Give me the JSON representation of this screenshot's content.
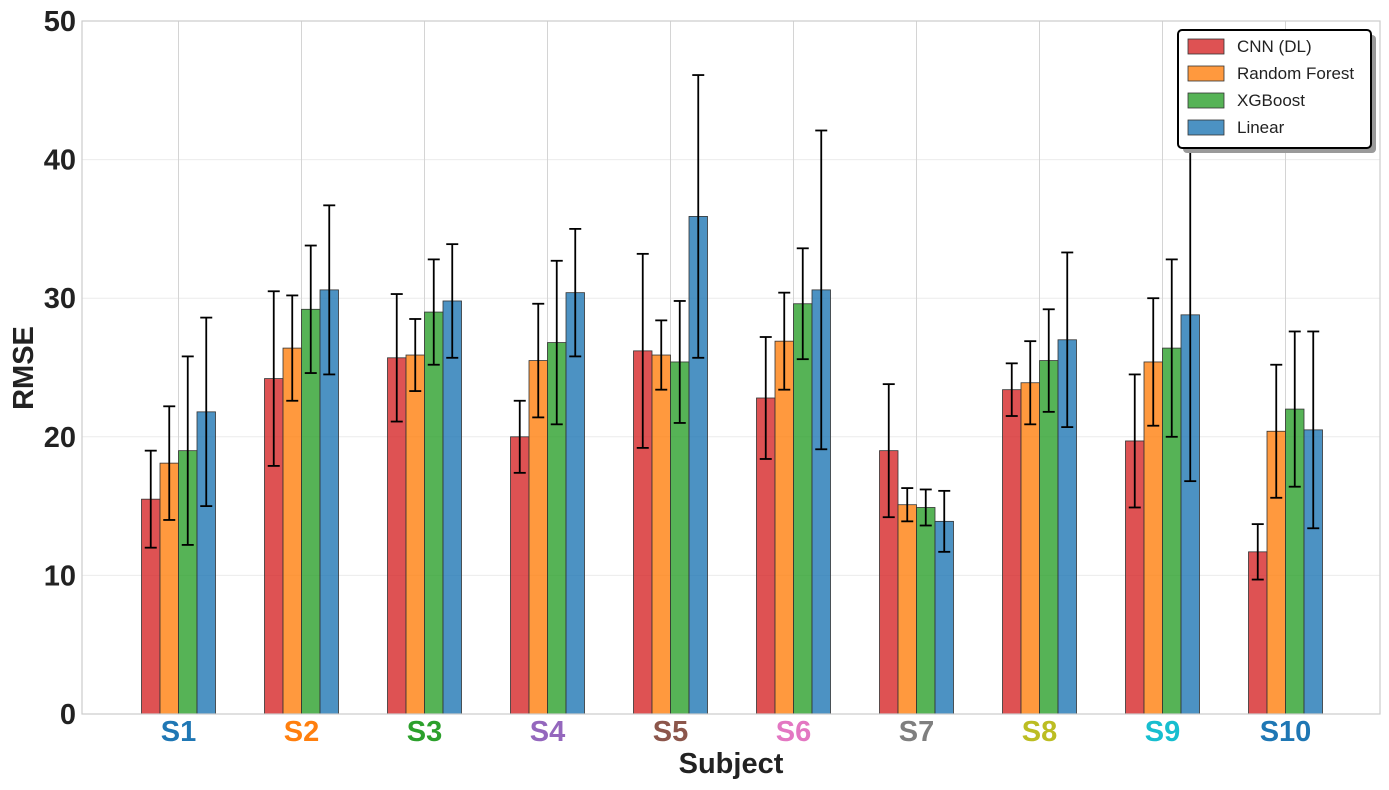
{
  "chart_data": {
    "type": "bar",
    "title": "",
    "xlabel": "Subject",
    "ylabel": "RMSE",
    "ylim": [
      0,
      50
    ],
    "yticks": [
      0,
      10,
      20,
      30,
      40,
      50
    ],
    "grid": true,
    "legend_position": "top-right",
    "categories": [
      "S1",
      "S2",
      "S3",
      "S4",
      "S5",
      "S6",
      "S7",
      "S8",
      "S9",
      "S10"
    ],
    "category_colors": [
      "#1f77b4",
      "#ff7f0e",
      "#2ca02c",
      "#9467bd",
      "#8c564b",
      "#e377c2",
      "#7f7f7f",
      "#bcbd22",
      "#17becf",
      "#1f77b4"
    ],
    "series": [
      {
        "name": "CNN (DL)",
        "color": "#d62728",
        "values": [
          15.5,
          24.2,
          25.7,
          20.0,
          26.2,
          22.8,
          19.0,
          23.4,
          19.7,
          11.7
        ],
        "errors": [
          3.5,
          6.3,
          4.6,
          2.6,
          7.0,
          4.4,
          4.8,
          1.9,
          4.8,
          2.0
        ]
      },
      {
        "name": "Random Forest",
        "color": "#ff7f0e",
        "values": [
          18.1,
          26.4,
          25.9,
          25.5,
          25.9,
          26.9,
          15.1,
          23.9,
          25.4,
          20.4
        ],
        "errors": [
          4.1,
          3.8,
          2.6,
          4.1,
          2.5,
          3.5,
          1.2,
          3.0,
          4.6,
          4.8
        ]
      },
      {
        "name": "XGBoost",
        "color": "#2ca02c",
        "values": [
          19.0,
          29.2,
          29.0,
          26.8,
          25.4,
          29.6,
          14.9,
          25.5,
          26.4,
          22.0
        ],
        "errors": [
          6.8,
          4.6,
          3.8,
          5.9,
          4.4,
          4.0,
          1.3,
          3.7,
          6.4,
          5.6
        ]
      },
      {
        "name": "Linear",
        "color": "#1f77b4",
        "values": [
          21.8,
          30.6,
          29.8,
          30.4,
          35.9,
          30.6,
          13.9,
          27.0,
          28.8,
          20.5
        ],
        "errors": [
          6.8,
          6.1,
          4.1,
          4.6,
          10.2,
          11.5,
          2.2,
          6.3,
          12.0,
          7.1
        ]
      }
    ]
  }
}
